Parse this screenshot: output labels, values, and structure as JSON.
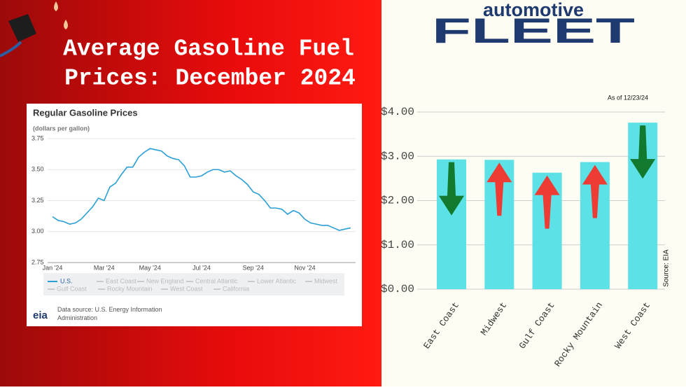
{
  "title": [
    "Average Gasoline Fuel",
    "Prices: December 2024"
  ],
  "logo": {
    "top": "automotive",
    "main": "FLEET"
  },
  "chart_data": [
    {
      "type": "line",
      "title": "Regular Gasoline Prices",
      "subtitle": "(dollars per gallon)",
      "categories": [
        "Jan '24",
        null,
        null,
        null,
        null,
        null,
        null,
        null,
        null,
        "Mar '24",
        null,
        null,
        null,
        null,
        null,
        null,
        null,
        "May '24",
        null,
        null,
        null,
        null,
        null,
        null,
        null,
        null,
        "Jul '24",
        null,
        null,
        null,
        null,
        null,
        null,
        null,
        null,
        "Sep '24",
        null,
        null,
        null,
        null,
        null,
        null,
        null,
        null,
        "Nov '24",
        null,
        null,
        null,
        null,
        null,
        null,
        null,
        null
      ],
      "series": [
        {
          "name": "U.S.",
          "color": "#2a9fd6",
          "values": [
            3.12,
            3.09,
            3.08,
            3.06,
            3.07,
            3.1,
            3.15,
            3.2,
            3.27,
            3.25,
            3.36,
            3.39,
            3.46,
            3.52,
            3.52,
            3.6,
            3.64,
            3.67,
            3.66,
            3.65,
            3.61,
            3.59,
            3.58,
            3.53,
            3.44,
            3.44,
            3.45,
            3.48,
            3.5,
            3.5,
            3.48,
            3.49,
            3.45,
            3.42,
            3.38,
            3.32,
            3.3,
            3.25,
            3.19,
            3.19,
            3.18,
            3.14,
            3.17,
            3.15,
            3.1,
            3.07,
            3.06,
            3.05,
            3.05,
            3.03,
            3.01,
            3.02,
            3.03
          ]
        }
      ],
      "inactive_legend": [
        "East Coast",
        "New England",
        "Central Atlantic",
        "Lower Atlantic",
        "Midwest",
        "Gulf Coast",
        "Rocky Mountain",
        "West Coast",
        "California"
      ],
      "ylim": [
        2.75,
        3.75
      ],
      "yticks": [
        2.75,
        {
          "value": 3,
          "label": "3.00"
        },
        3.25,
        {
          "value": 3.5,
          "label": "3.50"
        },
        3.75
      ],
      "source": "Data source: U.S. Energy Information Administration",
      "source_logo": "eia"
    },
    {
      "type": "bar",
      "annotation": "As of 12/23/24",
      "source": "Source: EIA",
      "categories": [
        "East Coast",
        "Midwest",
        "Gulf Coast",
        "Rocky Mountain",
        "West Coast"
      ],
      "values": [
        2.93,
        2.92,
        2.63,
        2.87,
        3.76
      ],
      "color": "#5ce1e6",
      "trend": [
        "down",
        "up",
        "up",
        "up",
        "down"
      ],
      "trend_colors": {
        "down": "#127a2e",
        "up": "#ee3b33"
      },
      "ylim": [
        0,
        4
      ],
      "yticks": [
        {
          "value": 0,
          "label": "$0.00"
        },
        {
          "value": 1,
          "label": "$1.00"
        },
        {
          "value": 2,
          "label": "$2.00"
        },
        {
          "value": 3,
          "label": "$3.00"
        },
        {
          "value": 4,
          "label": "$4.00"
        }
      ],
      "grid": true
    }
  ]
}
